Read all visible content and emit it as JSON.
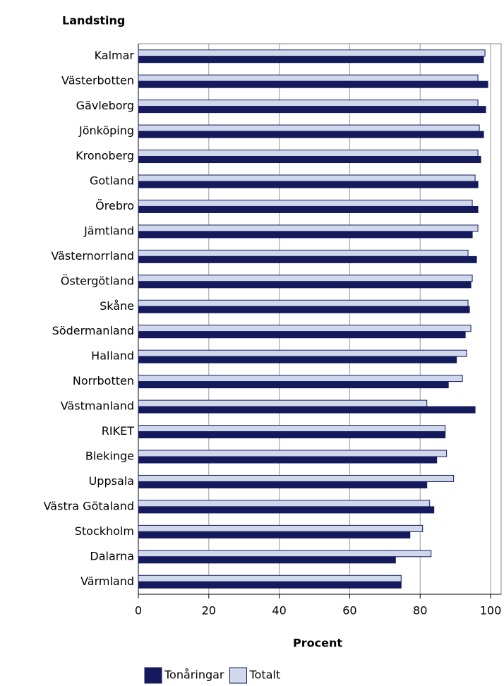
{
  "chart_data": {
    "type": "bar",
    "orientation": "horizontal",
    "title": "Landsting",
    "x_label": "Procent",
    "categories": [
      "Kalmar",
      "Västerbotten",
      "Gävleborg",
      "Jönköping",
      "Kronoberg",
      "Gotland",
      "Örebro",
      "Jämtland",
      "Västernorrland",
      "Östergötland",
      "Skåne",
      "Södermanland",
      "Halland",
      "Norrbotten",
      "Västmanland",
      "RIKET",
      "Blekinge",
      "Uppsala",
      "Västra Götaland",
      "Stockholm",
      "Dalarna",
      "Värmland"
    ],
    "series": [
      {
        "name": "Tonåringar",
        "color": "#141a5c",
        "values": [
          98.0,
          99.2,
          98.6,
          98.0,
          97.2,
          96.4,
          96.4,
          94.8,
          96.0,
          94.4,
          94.0,
          92.8,
          90.3,
          88.0,
          95.6,
          87.1,
          84.7,
          81.9,
          83.9,
          77.1,
          73.0,
          74.6
        ]
      },
      {
        "name": "Totalt",
        "color": "#d0d8ec",
        "values": [
          98.4,
          96.4,
          96.4,
          96.8,
          96.4,
          95.6,
          94.8,
          96.4,
          93.6,
          94.8,
          93.6,
          94.4,
          93.2,
          92.0,
          81.9,
          87.1,
          87.5,
          89.5,
          82.7,
          80.7,
          83.1,
          74.6
        ]
      }
    ],
    "xlim": [
      0,
      103
    ],
    "xticks": [
      0,
      20,
      40,
      60,
      80,
      100
    ],
    "grid": true
  }
}
